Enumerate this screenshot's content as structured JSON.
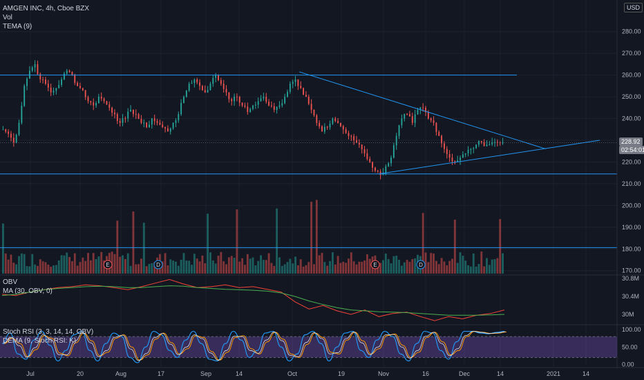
{
  "header": {
    "title": "AMGEN INC, 4h, Cboe BZX",
    "vol": "Vol",
    "tema": "TEMA (9)",
    "currency": "USD"
  },
  "price_tags": {
    "last": "228.92",
    "timer": "02:54:01"
  },
  "panes": {
    "obv_label": "OBV",
    "obv_ma_label": "MA (30, OBV, 0)",
    "stoch_label": "Stoch RSI (3, 3, 14, 14, OBV)",
    "dema_label": "DEMA (9, Stoch RSI: K)"
  },
  "colors": {
    "bg": "#131722",
    "up": "#26a69a",
    "down": "#ef5350",
    "trendline": "#2196f3",
    "obv": "#f44336",
    "obv_ma": "#4caf50",
    "stoch_k": "#2196f3",
    "stoch_d": "#ff9800",
    "dema": "#e0e0e0",
    "stoch_band": "#7e57c2",
    "grid": "#1e2230"
  },
  "chart_data": [
    {
      "type": "candlestick",
      "title": "AMGEN INC, 4h, Cboe BZX",
      "x_tick_labels": [
        "Jul",
        "20",
        "Aug",
        "17",
        "Sep",
        "14",
        "Oct",
        "19",
        "Nov",
        "16",
        "Dec",
        "14",
        "2021",
        "14"
      ],
      "y_tick_labels": [
        "280.00",
        "270.00",
        "260.00",
        "250.00",
        "240.00",
        "230.00",
        "220.00",
        "210.00",
        "200.00",
        "190.00",
        "180.00",
        "170.00"
      ],
      "ylim": [
        168,
        292
      ],
      "last_price": 228.92,
      "close_path": [
        235,
        233,
        229,
        238,
        255,
        262,
        265,
        258,
        256,
        252,
        254,
        258,
        262,
        260,
        255,
        253,
        248,
        246,
        250,
        248,
        245,
        242,
        238,
        240,
        244,
        242,
        238,
        236,
        240,
        238,
        236,
        234,
        238,
        242,
        250,
        256,
        258,
        255,
        252,
        256,
        260,
        256,
        252,
        248,
        250,
        246,
        243,
        246,
        248,
        250,
        246,
        244,
        246,
        250,
        256,
        258,
        254,
        250,
        244,
        238,
        234,
        236,
        240,
        238,
        235,
        232,
        230,
        228,
        224,
        220,
        216,
        214,
        218,
        222,
        232,
        240,
        242,
        238,
        244,
        245,
        240,
        238,
        232,
        226,
        222,
        220,
        222,
        224,
        226,
        228,
        229,
        228,
        229,
        229,
        228.92
      ],
      "events": [
        "E",
        "D",
        "E",
        "D"
      ]
    },
    {
      "type": "line",
      "title": "OBV",
      "y_tick_labels": [
        "30.8M",
        "30.4M",
        "30M"
      ],
      "series": [
        {
          "name": "OBV",
          "values": [
            30.45,
            30.42,
            30.5,
            30.55,
            30.6,
            30.62,
            30.66,
            30.64,
            30.6,
            30.55,
            30.62,
            30.7,
            30.78,
            30.68,
            30.6,
            30.62,
            30.66,
            30.6,
            30.62,
            30.56,
            30.5,
            30.28,
            30.12,
            30.2,
            30.08,
            30.0,
            30.1,
            29.95,
            30.02,
            30.05,
            29.95,
            29.86,
            29.95,
            29.9,
            29.98,
            30.02,
            30.1
          ]
        },
        {
          "name": "MA (30, OBV, 0)",
          "values": [
            30.42,
            30.45,
            30.5,
            30.55,
            30.58,
            30.6,
            30.62,
            30.63,
            30.62,
            30.6,
            30.6,
            30.62,
            30.64,
            30.63,
            30.6,
            30.58,
            30.56,
            30.55,
            30.54,
            30.52,
            30.48,
            30.4,
            30.3,
            30.22,
            30.15,
            30.1,
            30.08,
            30.06,
            30.05,
            30.04,
            30.02,
            30.0,
            29.98,
            29.98,
            29.98,
            29.99,
            30.0
          ]
        }
      ]
    },
    {
      "type": "line",
      "title": "Stoch RSI (3, 3, 14, 14, OBV)",
      "y_tick_labels": [
        "100.00",
        "50.00",
        "0.00"
      ],
      "ylim": [
        -5,
        110
      ],
      "bands": [
        20,
        80
      ],
      "series": [
        {
          "name": "K",
          "values": [
            60,
            90,
            30,
            15,
            70,
            95,
            55,
            10,
            40,
            85,
            95,
            40,
            10,
            60,
            90,
            80,
            20,
            5,
            50,
            95,
            85,
            40,
            20,
            70,
            95,
            60,
            15,
            10,
            60,
            95,
            70,
            20,
            40,
            90,
            95,
            50,
            10,
            30,
            85,
            95,
            60,
            10,
            50,
            90,
            95,
            40,
            20,
            70,
            95,
            80,
            30,
            10,
            60,
            95,
            90,
            40,
            15,
            65,
            95,
            95,
            90,
            88,
            92,
            95
          ]
        }
      ]
    }
  ]
}
